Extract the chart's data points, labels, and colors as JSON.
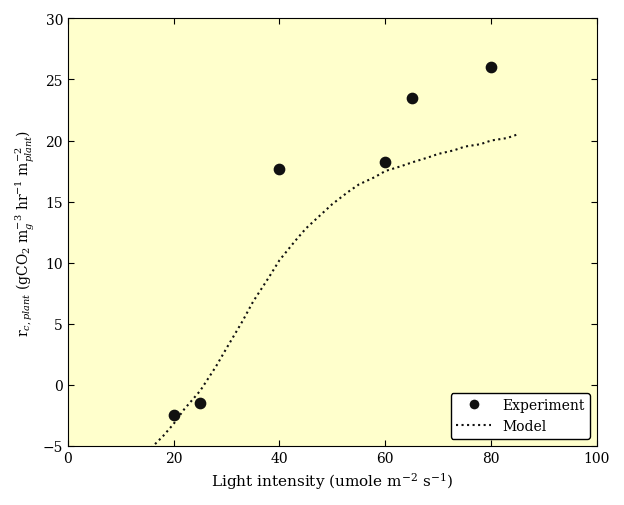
{
  "exp_x": [
    20,
    25,
    40,
    60,
    65,
    80
  ],
  "exp_y": [
    -2.5,
    -1.5,
    17.7,
    18.2,
    23.5,
    26.0
  ],
  "model_x_dense": [
    15,
    18,
    20,
    22,
    25,
    28,
    30,
    33,
    35,
    38,
    40,
    43,
    45,
    48,
    50,
    53,
    55,
    58,
    60,
    63,
    65,
    68,
    70,
    73,
    75,
    78,
    80,
    83,
    85
  ],
  "model_y_dense": [
    -5.5,
    -4.2,
    -3.2,
    -2.0,
    -0.5,
    1.5,
    3.0,
    5.2,
    6.8,
    8.8,
    10.2,
    11.8,
    12.8,
    14.0,
    14.8,
    15.8,
    16.4,
    17.0,
    17.5,
    17.9,
    18.2,
    18.6,
    18.9,
    19.2,
    19.5,
    19.7,
    20.0,
    20.2,
    20.5
  ],
  "xlim": [
    0,
    100
  ],
  "ylim": [
    -5,
    30
  ],
  "xticks": [
    0,
    20,
    40,
    60,
    80,
    100
  ],
  "yticks": [
    -5,
    0,
    5,
    10,
    15,
    20,
    25,
    30
  ],
  "xlabel": "Light intensity (umole m$^{-2}$ s$^{-1}$)",
  "ylabel": "r$_{c, plant}$ (gCO$_2$ m$_g^{-3}$ hr$^{-1}$ m$_{plant}^{-2}$)",
  "plot_bg_color": "#ffffcc",
  "fig_bg_color": "#ffffff",
  "marker_color": "#111111",
  "line_color": "#111111",
  "legend_experiment": "Experiment",
  "legend_model": "Model",
  "font_family": "serif"
}
